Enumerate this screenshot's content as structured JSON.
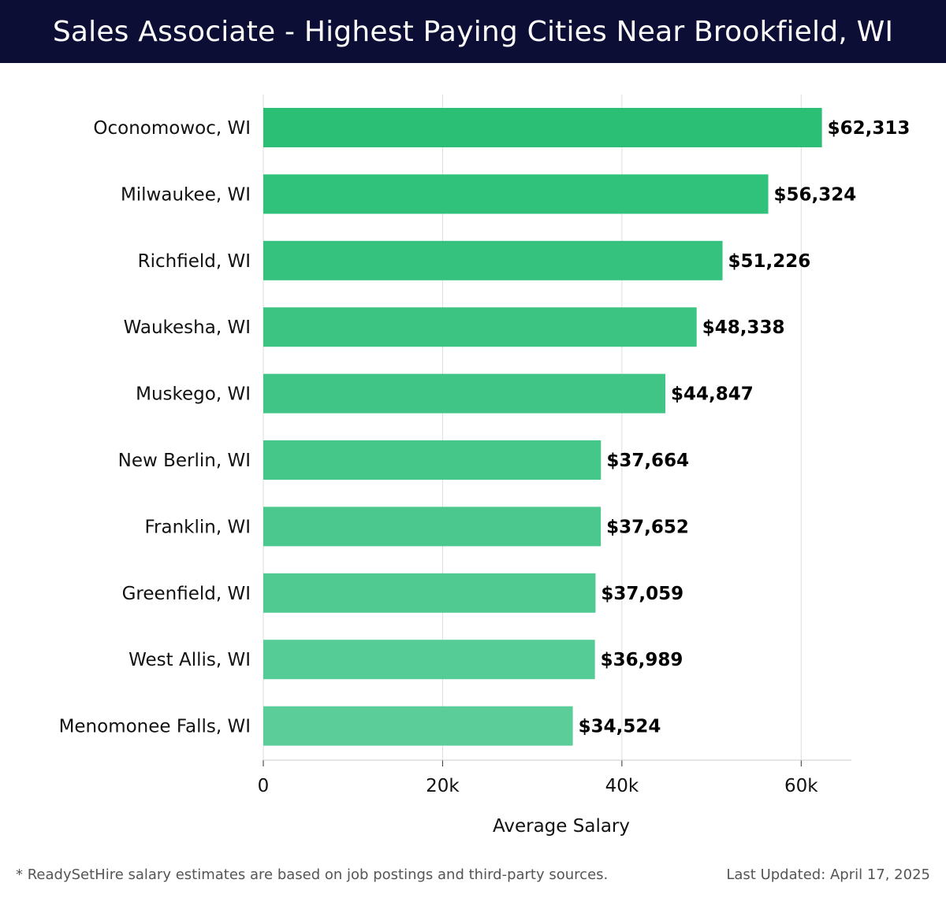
{
  "header": {
    "title": "Sales Associate - Highest Paying Cities Near Brookfield, WI"
  },
  "footer": {
    "note": "* ReadySetHire salary estimates are based on job postings and third-party sources.",
    "updated": "Last Updated: April 17, 2025"
  },
  "colors": {
    "title_bg": "#0c0e36",
    "bar_top": "#2bbf76",
    "bar_bottom": "#5acd99",
    "grid": "#dddddd"
  },
  "chart_data": {
    "type": "bar",
    "orientation": "horizontal",
    "title": "Sales Associate - Highest Paying Cities Near Brookfield, WI",
    "xlabel": "Average Salary",
    "ylabel": "",
    "xlim": [
      0,
      65600
    ],
    "xticks": [
      0,
      20000,
      40000,
      60000
    ],
    "xtick_labels": [
      "0",
      "20k",
      "40k",
      "60k"
    ],
    "grid": "vertical",
    "categories": [
      "Oconomowoc, WI",
      "Milwaukee, WI",
      "Richfield, WI",
      "Waukesha, WI",
      "Muskego, WI",
      "New Berlin, WI",
      "Franklin, WI",
      "Greenfield, WI",
      "West Allis, WI",
      "Menomonee Falls, WI"
    ],
    "values": [
      62313,
      56324,
      51226,
      48338,
      44847,
      37664,
      37652,
      37059,
      36989,
      34524
    ],
    "value_labels": [
      "$62,313",
      "$56,324",
      "$51,226",
      "$48,338",
      "$44,847",
      "$37,664",
      "$37,652",
      "$37,059",
      "$36,989",
      "$34,524"
    ]
  }
}
